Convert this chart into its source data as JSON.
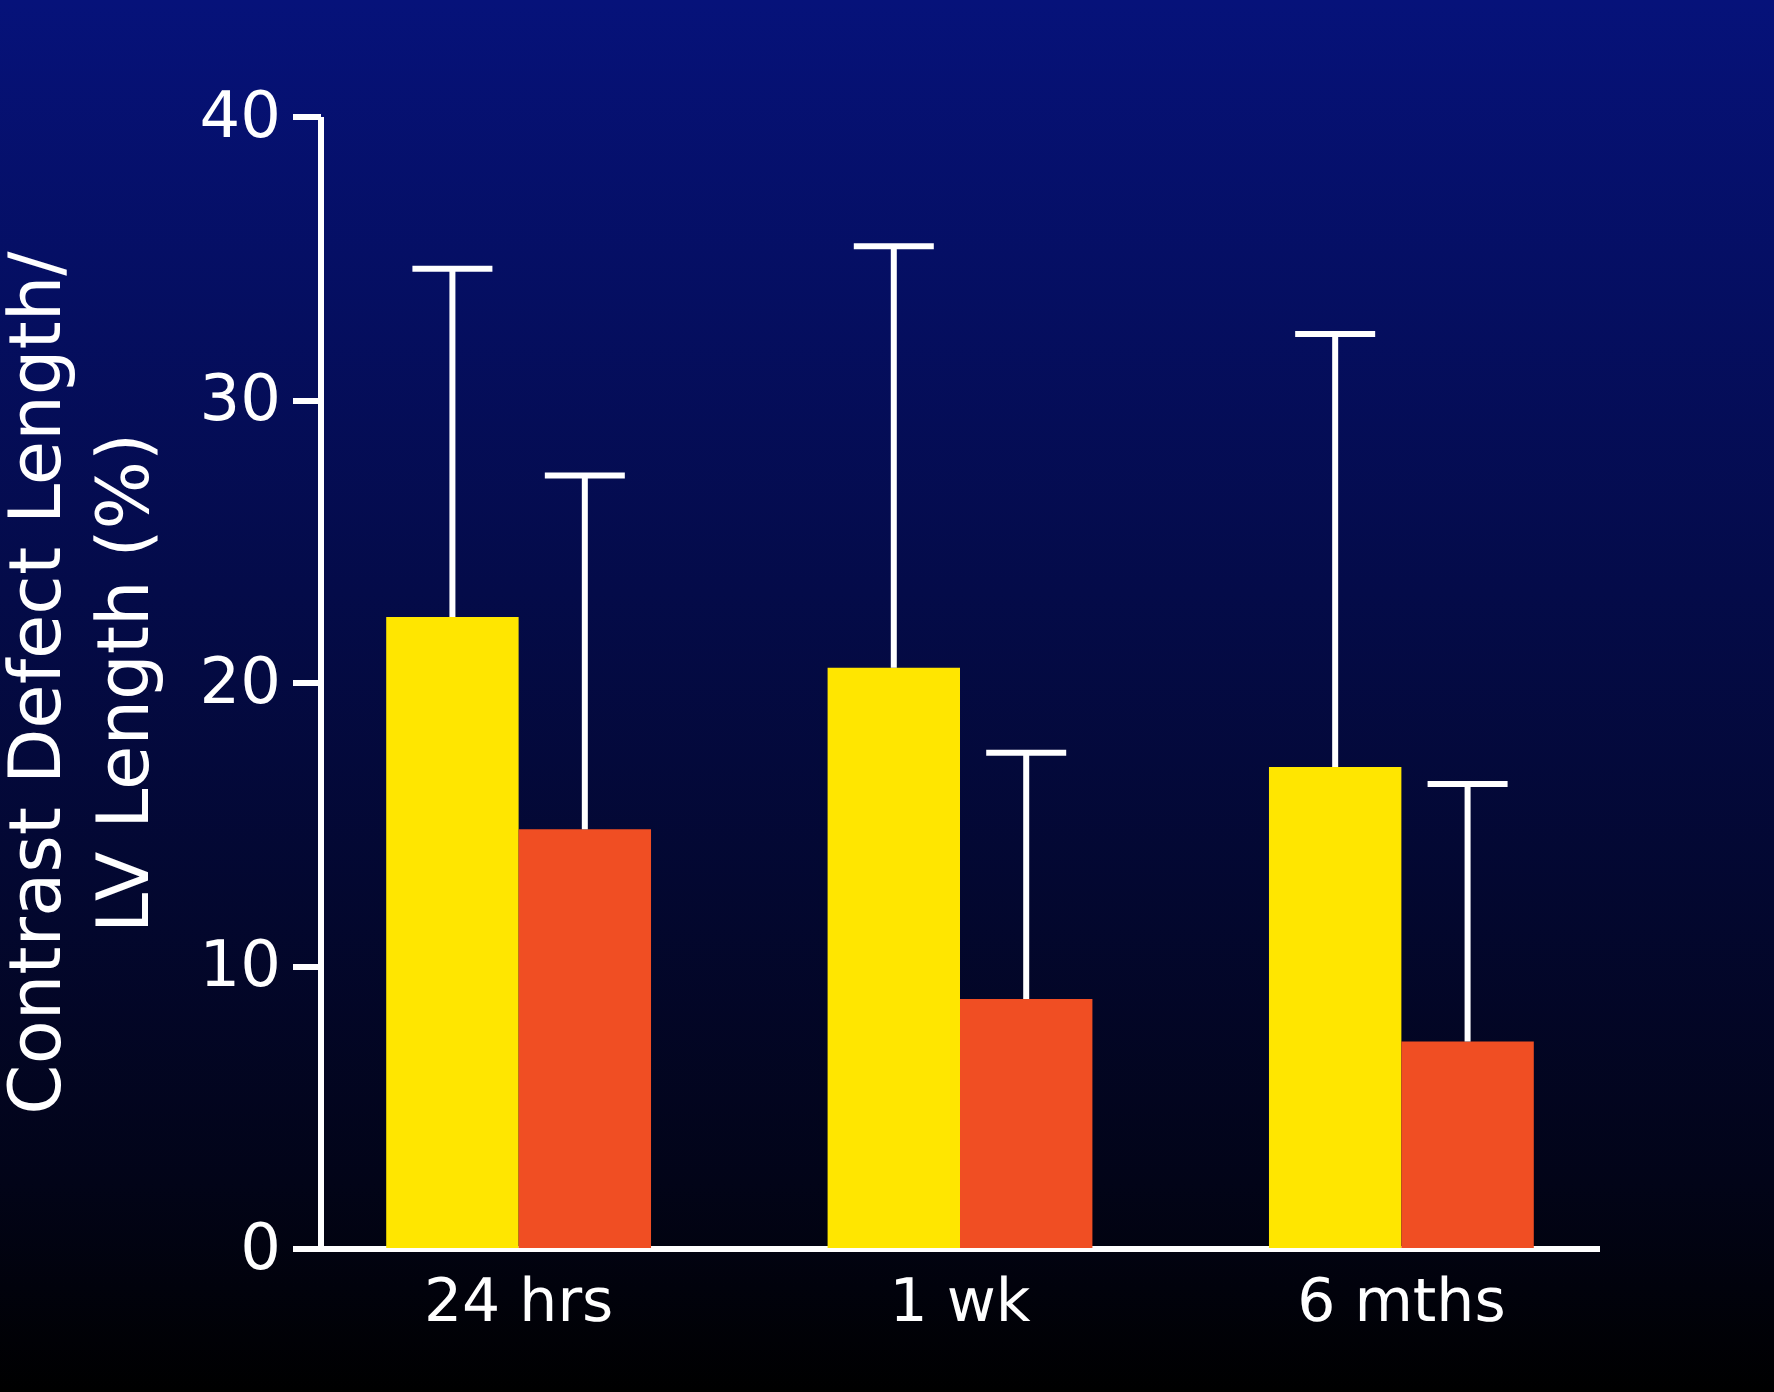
{
  "chart_data": {
    "type": "bar",
    "ylabel": "Contrast Defect Length/\nLV Length (%)",
    "categories": [
      "24 hrs",
      "1 wk",
      "6 mths"
    ],
    "series": [
      {
        "color": "#ffe600",
        "values": [
          22.3,
          20.5,
          17.0
        ],
        "errors": [
          [
            22.3,
            34.6
          ],
          [
            20.5,
            35.4
          ],
          [
            17.0,
            32.3
          ]
        ]
      },
      {
        "color": "#f04e23",
        "values": [
          14.8,
          8.8,
          7.3
        ],
        "errors": [
          [
            14.8,
            27.3
          ],
          [
            8.8,
            17.5
          ],
          [
            7.3,
            16.4
          ]
        ]
      }
    ],
    "ylim": [
      0,
      40
    ],
    "yticks": [
      0,
      10,
      20,
      30,
      40
    ],
    "grid": false,
    "legend": false
  }
}
